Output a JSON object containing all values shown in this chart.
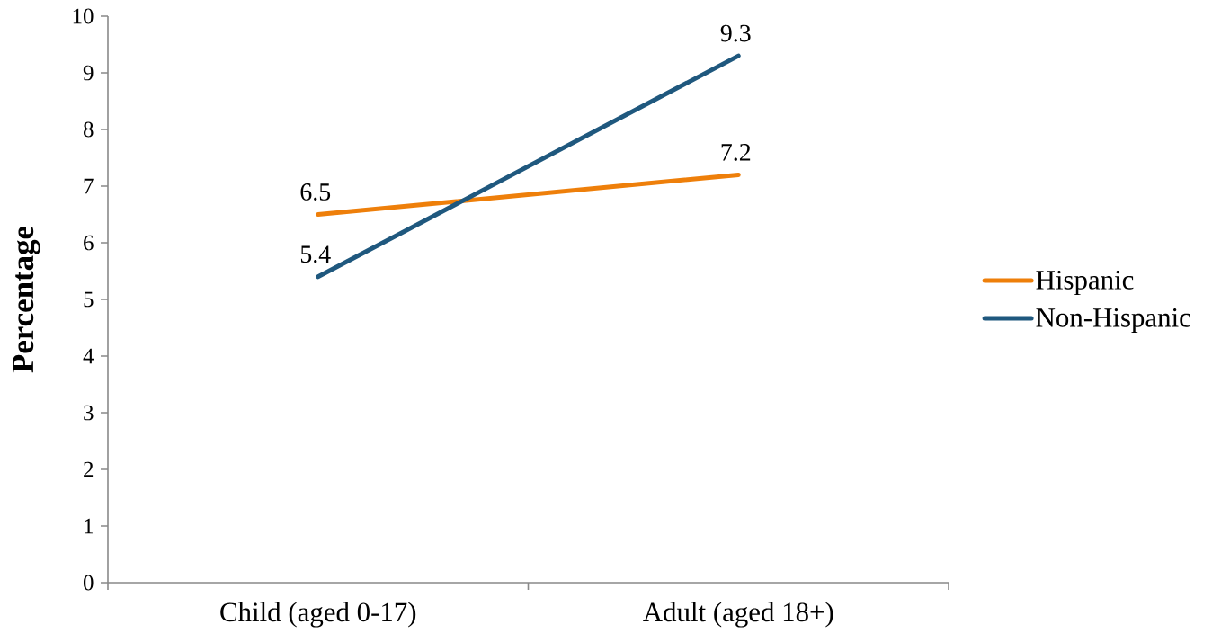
{
  "chart_data": {
    "type": "line",
    "ylabel": "Percentage",
    "categories": [
      "Child (aged 0-17)",
      "Adult (aged 18+)"
    ],
    "series": [
      {
        "name": "Hispanic",
        "color": "#ee7f0a",
        "values": [
          6.5,
          7.2
        ]
      },
      {
        "name": "Non-Hispanic",
        "color": "#1f587e",
        "values": [
          5.4,
          9.3
        ]
      }
    ],
    "ylim": [
      0,
      10
    ],
    "yticks": [
      0,
      1,
      2,
      3,
      4,
      5,
      6,
      7,
      8,
      9,
      10
    ],
    "data_labels": true,
    "legend": "right"
  }
}
